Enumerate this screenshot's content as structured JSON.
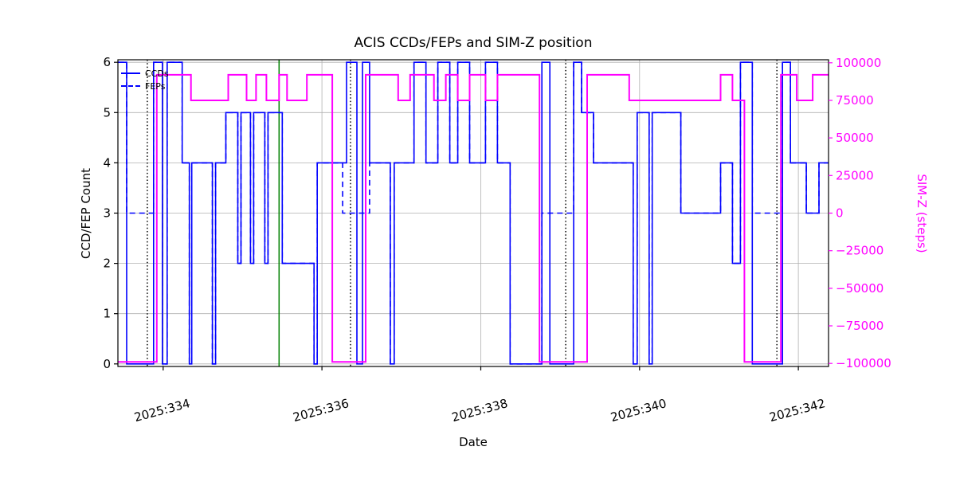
{
  "chart_data": {
    "type": "line",
    "title": "ACIS CCDs/FEPs and SIM-Z position",
    "xlabel": "Date",
    "ylabel_left": "CCD/FEP Count",
    "ylabel_right": "SIM-Z (steps)",
    "grid": true,
    "legend": [
      {
        "label": "CCDs",
        "style": "solid"
      },
      {
        "label": "FEPs",
        "style": "dashed"
      }
    ],
    "xlim": [
      333.43,
      342.38
    ],
    "ylim_left": [
      -0.05,
      6.05
    ],
    "ylim_right": [
      -102000,
      102000
    ],
    "xticks": [
      {
        "v": 334,
        "label": "2025:334"
      },
      {
        "v": 336,
        "label": "2025:336"
      },
      {
        "v": 338,
        "label": "2025:338"
      },
      {
        "v": 340,
        "label": "2025:340"
      },
      {
        "v": 342,
        "label": "2025:342"
      }
    ],
    "yticks_left": [
      0,
      1,
      2,
      3,
      4,
      5,
      6
    ],
    "yticks_right": [
      {
        "v": 100000,
        "label": "100000"
      },
      {
        "v": 75000,
        "label": "75000"
      },
      {
        "v": 50000,
        "label": "50000"
      },
      {
        "v": 25000,
        "label": "25000"
      },
      {
        "v": 0,
        "label": "0"
      },
      {
        "v": -25000,
        "label": "−25000"
      },
      {
        "v": -50000,
        "label": "−50000"
      },
      {
        "v": -75000,
        "label": "−75000"
      },
      {
        "v": -100000,
        "label": "−100000"
      }
    ],
    "colors": {
      "ccds": "#0000ff",
      "feps": "#0000ff",
      "simz": "#ff00ff",
      "grid": "#b0b0b0",
      "spine": "#000000",
      "event_line": "#008000",
      "dotted_line": "#000000"
    },
    "vlines": [
      {
        "t": 333.8,
        "color": "#000000",
        "style": "dotted"
      },
      {
        "t": 335.46,
        "color": "#008000",
        "style": "solid"
      },
      {
        "t": 336.36,
        "color": "#000000",
        "style": "dotted"
      },
      {
        "t": 339.07,
        "color": "#000000",
        "style": "dotted"
      },
      {
        "t": 341.73,
        "color": "#000000",
        "style": "dotted"
      }
    ],
    "series": {
      "ccds": {
        "name": "CCDs",
        "axis": "left",
        "style": "solid",
        "steps": [
          [
            333.43,
            6
          ],
          [
            333.54,
            0
          ],
          [
            333.88,
            6
          ],
          [
            333.99,
            0
          ],
          [
            334.05,
            6
          ],
          [
            334.24,
            4
          ],
          [
            334.33,
            0
          ],
          [
            334.36,
            4
          ],
          [
            334.62,
            0
          ],
          [
            334.66,
            4
          ],
          [
            334.79,
            5
          ],
          [
            334.94,
            2
          ],
          [
            334.98,
            5
          ],
          [
            335.1,
            2
          ],
          [
            335.14,
            5
          ],
          [
            335.28,
            2
          ],
          [
            335.32,
            5
          ],
          [
            335.5,
            2
          ],
          [
            335.9,
            0
          ],
          [
            335.94,
            4
          ],
          [
            336.31,
            6
          ],
          [
            336.44,
            0
          ],
          [
            336.51,
            6
          ],
          [
            336.6,
            4
          ],
          [
            336.86,
            0
          ],
          [
            336.91,
            4
          ],
          [
            337.16,
            6
          ],
          [
            337.31,
            4
          ],
          [
            337.46,
            6
          ],
          [
            337.61,
            4
          ],
          [
            337.71,
            6
          ],
          [
            337.86,
            4
          ],
          [
            338.06,
            6
          ],
          [
            338.21,
            4
          ],
          [
            338.37,
            0
          ],
          [
            338.77,
            6
          ],
          [
            338.87,
            0
          ],
          [
            339.17,
            6
          ],
          [
            339.27,
            5
          ],
          [
            339.42,
            4
          ],
          [
            339.92,
            0
          ],
          [
            339.97,
            5
          ],
          [
            340.12,
            0
          ],
          [
            340.16,
            5
          ],
          [
            340.52,
            3
          ],
          [
            341.02,
            4
          ],
          [
            341.17,
            2
          ],
          [
            341.27,
            6
          ],
          [
            341.42,
            0
          ],
          [
            341.8,
            6
          ],
          [
            341.9,
            4
          ],
          [
            342.1,
            3
          ],
          [
            342.26,
            4
          ]
        ]
      },
      "feps": {
        "name": "FEPs",
        "axis": "left",
        "style": "dashed",
        "steps": [
          [
            333.43,
            6
          ],
          [
            333.54,
            3
          ],
          [
            333.88,
            6
          ],
          [
            333.99,
            0
          ],
          [
            334.05,
            6
          ],
          [
            334.24,
            4
          ],
          [
            334.33,
            0
          ],
          [
            334.36,
            4
          ],
          [
            334.62,
            0
          ],
          [
            334.66,
            4
          ],
          [
            334.79,
            5
          ],
          [
            334.94,
            2
          ],
          [
            334.98,
            5
          ],
          [
            335.1,
            2
          ],
          [
            335.14,
            5
          ],
          [
            335.28,
            2
          ],
          [
            335.32,
            5
          ],
          [
            335.5,
            2
          ],
          [
            335.9,
            0
          ],
          [
            335.94,
            4
          ],
          [
            336.26,
            3
          ],
          [
            336.6,
            4
          ],
          [
            336.86,
            0
          ],
          [
            336.91,
            4
          ],
          [
            337.16,
            6
          ],
          [
            337.31,
            4
          ],
          [
            337.46,
            6
          ],
          [
            337.61,
            4
          ],
          [
            337.71,
            6
          ],
          [
            337.86,
            4
          ],
          [
            338.06,
            6
          ],
          [
            338.21,
            4
          ],
          [
            338.37,
            0
          ],
          [
            338.77,
            3
          ],
          [
            339.17,
            6
          ],
          [
            339.27,
            5
          ],
          [
            339.42,
            4
          ],
          [
            339.92,
            0
          ],
          [
            339.97,
            5
          ],
          [
            340.12,
            0
          ],
          [
            340.16,
            5
          ],
          [
            340.52,
            3
          ],
          [
            341.02,
            4
          ],
          [
            341.17,
            2
          ],
          [
            341.27,
            6
          ],
          [
            341.42,
            3
          ],
          [
            341.8,
            6
          ],
          [
            341.9,
            4
          ],
          [
            342.1,
            3
          ],
          [
            342.26,
            4
          ]
        ]
      },
      "simz": {
        "name": "SIM-Z",
        "axis": "right",
        "style": "solid",
        "steps": [
          [
            333.43,
            -99000
          ],
          [
            333.92,
            92000
          ],
          [
            334.35,
            75000
          ],
          [
            334.82,
            92000
          ],
          [
            335.05,
            75000
          ],
          [
            335.17,
            92000
          ],
          [
            335.3,
            75000
          ],
          [
            335.46,
            92000
          ],
          [
            335.56,
            75000
          ],
          [
            335.81,
            92000
          ],
          [
            336.13,
            -99000
          ],
          [
            336.55,
            92000
          ],
          [
            336.96,
            75000
          ],
          [
            337.11,
            92000
          ],
          [
            337.41,
            75000
          ],
          [
            337.56,
            92000
          ],
          [
            337.71,
            75000
          ],
          [
            337.86,
            92000
          ],
          [
            338.06,
            75000
          ],
          [
            338.21,
            92000
          ],
          [
            338.74,
            -99000
          ],
          [
            339.34,
            92000
          ],
          [
            339.87,
            75000
          ],
          [
            341.02,
            92000
          ],
          [
            341.17,
            75000
          ],
          [
            341.32,
            -99000
          ],
          [
            341.78,
            92000
          ],
          [
            341.98,
            75000
          ],
          [
            342.18,
            92000
          ]
        ]
      }
    }
  }
}
